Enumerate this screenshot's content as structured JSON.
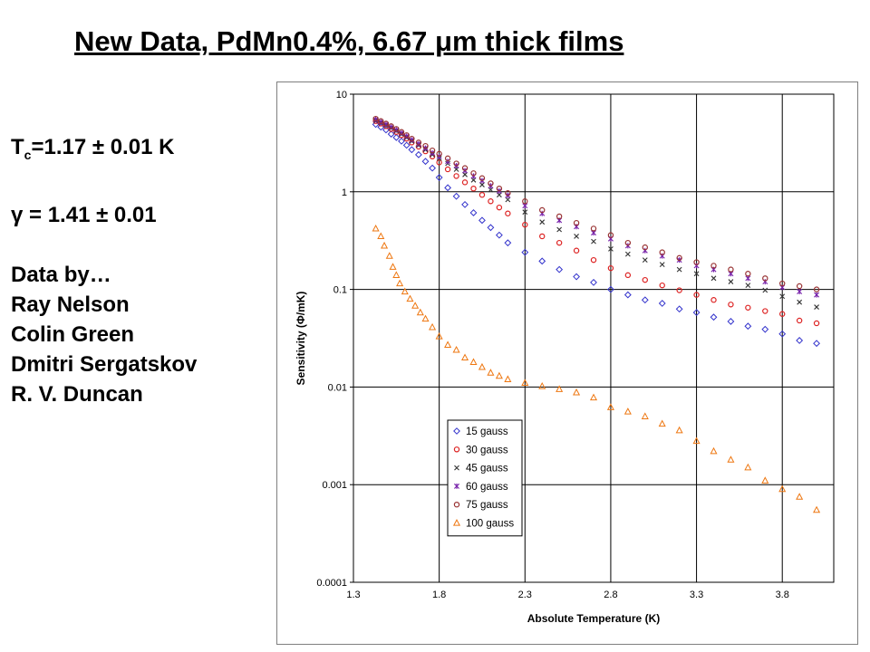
{
  "title": "New Data, PdMn0.4%, 6.67 μm thick films",
  "info": {
    "tc_symbol": "T",
    "tc_sub": "c",
    "tc_value": "=1.17 ± 0.01 K",
    "gamma": "γ = 1.41 ± 0.01",
    "data_by": "Data by…",
    "authors": [
      "Ray Nelson",
      "Colin Green",
      "Dmitri Sergatskov",
      "R. V. Duncan"
    ]
  },
  "chart_data": {
    "type": "scatter",
    "title": "",
    "xlabel": "Absolute Temperature (K)",
    "ylabel": "Sensitivity (Φ/mK)",
    "xlim": [
      1.3,
      4.1
    ],
    "ylim": [
      0.0001,
      10
    ],
    "yscale": "log",
    "grid": true,
    "legend_position": "bottom-left",
    "x_ticks": [
      "1.3",
      "1.8",
      "2.3",
      "2.8",
      "3.3",
      "3.8"
    ],
    "y_ticks": [
      "0.0001",
      "0.001",
      "0.01",
      "0.1",
      "1",
      "10"
    ],
    "series": [
      {
        "name": "15 gauss",
        "marker": "diamond",
        "color": "#3333cc",
        "points": [
          [
            1.43,
            4.9
          ],
          [
            1.46,
            4.6
          ],
          [
            1.49,
            4.3
          ],
          [
            1.52,
            3.9
          ],
          [
            1.55,
            3.6
          ],
          [
            1.58,
            3.3
          ],
          [
            1.61,
            3.0
          ],
          [
            1.64,
            2.7
          ],
          [
            1.68,
            2.4
          ],
          [
            1.72,
            2.05
          ],
          [
            1.76,
            1.75
          ],
          [
            1.8,
            1.4
          ],
          [
            1.85,
            1.1
          ],
          [
            1.9,
            0.9
          ],
          [
            1.95,
            0.74
          ],
          [
            2.0,
            0.61
          ],
          [
            2.05,
            0.51
          ],
          [
            2.1,
            0.43
          ],
          [
            2.15,
            0.36
          ],
          [
            2.2,
            0.3
          ],
          [
            2.3,
            0.24
          ],
          [
            2.4,
            0.195
          ],
          [
            2.5,
            0.16
          ],
          [
            2.6,
            0.135
          ],
          [
            2.7,
            0.118
          ],
          [
            2.8,
            0.1
          ],
          [
            2.9,
            0.088
          ],
          [
            3.0,
            0.078
          ],
          [
            3.1,
            0.072
          ],
          [
            3.2,
            0.063
          ],
          [
            3.3,
            0.058
          ],
          [
            3.4,
            0.052
          ],
          [
            3.5,
            0.047
          ],
          [
            3.6,
            0.042
          ],
          [
            3.7,
            0.039
          ],
          [
            3.8,
            0.035
          ],
          [
            3.9,
            0.03
          ],
          [
            4.0,
            0.028
          ]
        ]
      },
      {
        "name": "30 gauss",
        "marker": "circle",
        "color": "#dd2222",
        "points": [
          [
            1.43,
            5.3
          ],
          [
            1.46,
            5.0
          ],
          [
            1.49,
            4.7
          ],
          [
            1.52,
            4.4
          ],
          [
            1.55,
            4.1
          ],
          [
            1.58,
            3.8
          ],
          [
            1.61,
            3.5
          ],
          [
            1.64,
            3.2
          ],
          [
            1.68,
            2.9
          ],
          [
            1.72,
            2.6
          ],
          [
            1.76,
            2.3
          ],
          [
            1.8,
            2.0
          ],
          [
            1.85,
            1.7
          ],
          [
            1.9,
            1.45
          ],
          [
            1.95,
            1.25
          ],
          [
            2.0,
            1.08
          ],
          [
            2.05,
            0.93
          ],
          [
            2.1,
            0.8
          ],
          [
            2.15,
            0.69
          ],
          [
            2.2,
            0.6
          ],
          [
            2.3,
            0.46
          ],
          [
            2.4,
            0.35
          ],
          [
            2.5,
            0.3
          ],
          [
            2.6,
            0.25
          ],
          [
            2.7,
            0.2
          ],
          [
            2.8,
            0.165
          ],
          [
            2.9,
            0.14
          ],
          [
            3.0,
            0.125
          ],
          [
            3.1,
            0.11
          ],
          [
            3.2,
            0.098
          ],
          [
            3.3,
            0.088
          ],
          [
            3.4,
            0.078
          ],
          [
            3.5,
            0.07
          ],
          [
            3.6,
            0.065
          ],
          [
            3.7,
            0.06
          ],
          [
            3.8,
            0.056
          ],
          [
            3.9,
            0.048
          ],
          [
            4.0,
            0.045
          ]
        ]
      },
      {
        "name": "45 gauss",
        "marker": "x",
        "color": "#333333",
        "points": [
          [
            1.43,
            5.4
          ],
          [
            1.46,
            5.1
          ],
          [
            1.49,
            4.8
          ],
          [
            1.52,
            4.5
          ],
          [
            1.55,
            4.2
          ],
          [
            1.58,
            3.9
          ],
          [
            1.61,
            3.6
          ],
          [
            1.64,
            3.3
          ],
          [
            1.68,
            3.0
          ],
          [
            1.72,
            2.7
          ],
          [
            1.76,
            2.4
          ],
          [
            1.8,
            2.2
          ],
          [
            1.85,
            1.95
          ],
          [
            1.9,
            1.7
          ],
          [
            1.95,
            1.5
          ],
          [
            2.0,
            1.32
          ],
          [
            2.05,
            1.18
          ],
          [
            2.1,
            1.05
          ],
          [
            2.15,
            0.93
          ],
          [
            2.2,
            0.83
          ],
          [
            2.3,
            0.62
          ],
          [
            2.4,
            0.49
          ],
          [
            2.5,
            0.41
          ],
          [
            2.6,
            0.35
          ],
          [
            2.7,
            0.31
          ],
          [
            2.8,
            0.26
          ],
          [
            2.9,
            0.23
          ],
          [
            3.0,
            0.2
          ],
          [
            3.1,
            0.18
          ],
          [
            3.2,
            0.16
          ],
          [
            3.3,
            0.145
          ],
          [
            3.4,
            0.13
          ],
          [
            3.5,
            0.12
          ],
          [
            3.6,
            0.11
          ],
          [
            3.7,
            0.098
          ],
          [
            3.8,
            0.085
          ],
          [
            3.9,
            0.074
          ],
          [
            4.0,
            0.066
          ]
        ]
      },
      {
        "name": "60 gauss",
        "marker": "star",
        "color": "#7722aa",
        "points": [
          [
            1.43,
            5.5
          ],
          [
            1.46,
            5.2
          ],
          [
            1.49,
            4.9
          ],
          [
            1.52,
            4.6
          ],
          [
            1.55,
            4.3
          ],
          [
            1.58,
            4.0
          ],
          [
            1.61,
            3.7
          ],
          [
            1.64,
            3.4
          ],
          [
            1.68,
            3.1
          ],
          [
            1.72,
            2.8
          ],
          [
            1.76,
            2.5
          ],
          [
            1.8,
            2.3
          ],
          [
            1.85,
            2.05
          ],
          [
            1.9,
            1.85
          ],
          [
            1.95,
            1.65
          ],
          [
            2.0,
            1.45
          ],
          [
            2.05,
            1.3
          ],
          [
            2.1,
            1.15
          ],
          [
            2.15,
            1.02
          ],
          [
            2.2,
            0.92
          ],
          [
            2.3,
            0.72
          ],
          [
            2.4,
            0.6
          ],
          [
            2.5,
            0.51
          ],
          [
            2.6,
            0.44
          ],
          [
            2.7,
            0.38
          ],
          [
            2.8,
            0.33
          ],
          [
            2.9,
            0.28
          ],
          [
            3.0,
            0.25
          ],
          [
            3.1,
            0.22
          ],
          [
            3.2,
            0.2
          ],
          [
            3.3,
            0.175
          ],
          [
            3.4,
            0.16
          ],
          [
            3.5,
            0.145
          ],
          [
            3.6,
            0.13
          ],
          [
            3.7,
            0.12
          ],
          [
            3.8,
            0.105
          ],
          [
            3.9,
            0.095
          ],
          [
            4.0,
            0.088
          ]
        ]
      },
      {
        "name": "75 gauss",
        "marker": "circle",
        "color": "#993333",
        "points": [
          [
            1.43,
            5.6
          ],
          [
            1.46,
            5.3
          ],
          [
            1.49,
            5.0
          ],
          [
            1.52,
            4.7
          ],
          [
            1.55,
            4.4
          ],
          [
            1.58,
            4.1
          ],
          [
            1.61,
            3.8
          ],
          [
            1.64,
            3.5
          ],
          [
            1.68,
            3.2
          ],
          [
            1.72,
            2.95
          ],
          [
            1.76,
            2.65
          ],
          [
            1.8,
            2.45
          ],
          [
            1.85,
            2.2
          ],
          [
            1.9,
            1.95
          ],
          [
            1.95,
            1.75
          ],
          [
            2.0,
            1.55
          ],
          [
            2.05,
            1.38
          ],
          [
            2.1,
            1.22
          ],
          [
            2.15,
            1.08
          ],
          [
            2.2,
            0.97
          ],
          [
            2.3,
            0.8
          ],
          [
            2.4,
            0.65
          ],
          [
            2.5,
            0.56
          ],
          [
            2.6,
            0.48
          ],
          [
            2.7,
            0.42
          ],
          [
            2.8,
            0.36
          ],
          [
            2.9,
            0.3
          ],
          [
            3.0,
            0.27
          ],
          [
            3.1,
            0.24
          ],
          [
            3.2,
            0.21
          ],
          [
            3.3,
            0.19
          ],
          [
            3.4,
            0.175
          ],
          [
            3.5,
            0.16
          ],
          [
            3.6,
            0.145
          ],
          [
            3.7,
            0.13
          ],
          [
            3.8,
            0.115
          ],
          [
            3.9,
            0.108
          ],
          [
            4.0,
            0.1
          ]
        ]
      },
      {
        "name": "100 gauss",
        "marker": "triangle",
        "color": "#ee7711",
        "points": [
          [
            1.43,
            0.42
          ],
          [
            1.46,
            0.35
          ],
          [
            1.48,
            0.28
          ],
          [
            1.51,
            0.22
          ],
          [
            1.53,
            0.17
          ],
          [
            1.55,
            0.14
          ],
          [
            1.57,
            0.115
          ],
          [
            1.6,
            0.095
          ],
          [
            1.63,
            0.08
          ],
          [
            1.66,
            0.068
          ],
          [
            1.69,
            0.058
          ],
          [
            1.72,
            0.05
          ],
          [
            1.76,
            0.041
          ],
          [
            1.8,
            0.033
          ],
          [
            1.85,
            0.027
          ],
          [
            1.9,
            0.024
          ],
          [
            1.95,
            0.02
          ],
          [
            2.0,
            0.018
          ],
          [
            2.05,
            0.016
          ],
          [
            2.1,
            0.014
          ],
          [
            2.15,
            0.013
          ],
          [
            2.2,
            0.012
          ],
          [
            2.3,
            0.011
          ],
          [
            2.4,
            0.0102
          ],
          [
            2.5,
            0.0095
          ],
          [
            2.6,
            0.0088
          ],
          [
            2.7,
            0.0078
          ],
          [
            2.8,
            0.0062
          ],
          [
            2.9,
            0.0056
          ],
          [
            3.0,
            0.005
          ],
          [
            3.1,
            0.0042
          ],
          [
            3.2,
            0.0036
          ],
          [
            3.3,
            0.0028
          ],
          [
            3.4,
            0.0022
          ],
          [
            3.5,
            0.0018
          ],
          [
            3.6,
            0.0015
          ],
          [
            3.7,
            0.0011
          ],
          [
            3.8,
            0.0009
          ],
          [
            3.9,
            0.00075
          ],
          [
            4.0,
            0.00055
          ]
        ]
      }
    ]
  }
}
